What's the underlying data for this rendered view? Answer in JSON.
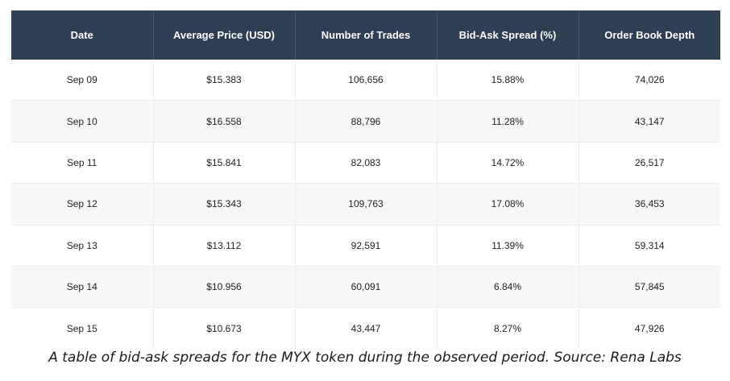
{
  "table": {
    "columns": [
      "Date",
      "Average Price (USD)",
      "Number of Trades",
      "Bid-Ask Spread (%)",
      "Order Book Depth"
    ],
    "rows": [
      [
        "Sep 09",
        "$15.383",
        "106,656",
        "15.88%",
        "74,026"
      ],
      [
        "Sep 10",
        "$16.558",
        "88,796",
        "11.28%",
        "43,147"
      ],
      [
        "Sep 11",
        "$15.841",
        "82,083",
        "14.72%",
        "26,517"
      ],
      [
        "Sep 12",
        "$15.343",
        "109,763",
        "17.08%",
        "36,453"
      ],
      [
        "Sep 13",
        "$13.112",
        "92,591",
        "11.39%",
        "59,314"
      ],
      [
        "Sep 14",
        "$10.956",
        "60,091",
        "6.84%",
        "57,845"
      ],
      [
        "Sep 15",
        "$10.673",
        "43,447",
        "8.27%",
        "47,926"
      ]
    ]
  },
  "caption": "A table of bid-ask spreads for the MYX token during the observed period. Source: Rena Labs",
  "colors": {
    "header_bg": "#2e3f52",
    "header_text": "#ffffff",
    "row_alt_bg": "#f7f7f7"
  }
}
